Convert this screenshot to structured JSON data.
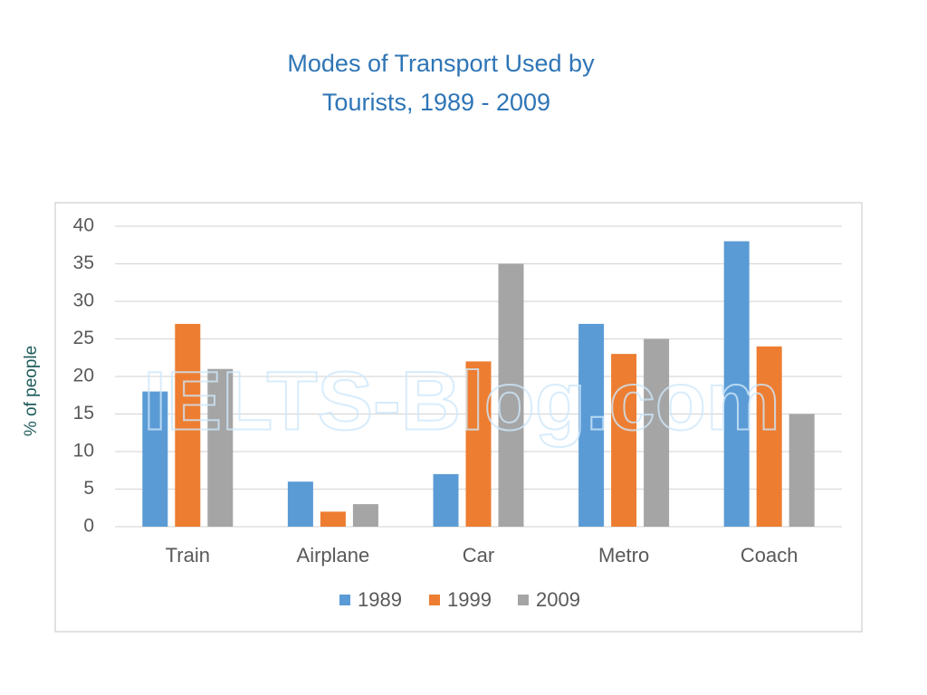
{
  "chart_data": {
    "type": "bar",
    "title": [
      "Modes of Transport Used by",
      "Tourists, 1989 - 2009"
    ],
    "ylabel": "% of people",
    "watermark": "IELTS-Blog.com",
    "categories": [
      "Train",
      "Airplane",
      "Car",
      "Metro",
      "Coach"
    ],
    "series": [
      {
        "name": "1989",
        "color": "#5b9bd5",
        "values": [
          18,
          6,
          7,
          27,
          38
        ]
      },
      {
        "name": "1999",
        "color": "#ed7d31",
        "values": [
          27,
          2,
          22,
          23,
          24
        ]
      },
      {
        "name": "2009",
        "color": "#a5a5a5",
        "values": [
          21,
          3,
          35,
          25,
          15
        ]
      }
    ],
    "ylim": [
      0,
      40
    ],
    "yticks": [
      0,
      5,
      10,
      15,
      20,
      25,
      30,
      35,
      40
    ],
    "grid": true,
    "legend": "bottom"
  }
}
